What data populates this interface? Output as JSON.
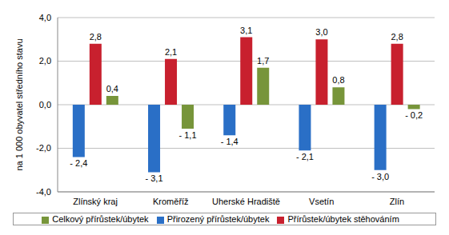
{
  "chart_data": {
    "type": "bar",
    "y_label": "na 1 000 obyvatel středního stavu",
    "categories": [
      "Zlínský kraj",
      "Kroměříž",
      "Uherské Hradiště",
      "Vsetín",
      "Zlín"
    ],
    "series": [
      {
        "name": "Přirozený přírůstek/úbytek",
        "color": "#2a6fc6",
        "values": [
          -2.4,
          -3.1,
          -1.4,
          -2.1,
          -3.0
        ],
        "value_labels": [
          "- 2,4",
          "- 3,1",
          "- 1,4",
          "- 2,1",
          "- 3,0"
        ]
      },
      {
        "name": "Přírůstek/úbytek stěhováním",
        "color": "#c8202e",
        "values": [
          2.8,
          2.1,
          3.1,
          3.0,
          2.8
        ],
        "value_labels": [
          "2,8",
          "2,1",
          "3,1",
          "3,0",
          "2,8"
        ]
      },
      {
        "name": "Celkový přírůstek/úbytek",
        "color": "#77953a",
        "values": [
          0.4,
          -1.1,
          1.7,
          0.8,
          -0.2
        ],
        "value_labels": [
          "0,4",
          "- 1,1",
          "1,7",
          "0,8",
          "- 0,2"
        ]
      }
    ],
    "ylim": [
      -4,
      4
    ],
    "yticks": [
      {
        "value": -4,
        "label": "-4,0"
      },
      {
        "value": -2,
        "label": "-2,0"
      },
      {
        "value": 0,
        "label": "0,0"
      },
      {
        "value": 2,
        "label": "2,0"
      },
      {
        "value": 4,
        "label": "4,0"
      }
    ],
    "grid": true,
    "legend": "bottom",
    "data_labels": true
  }
}
